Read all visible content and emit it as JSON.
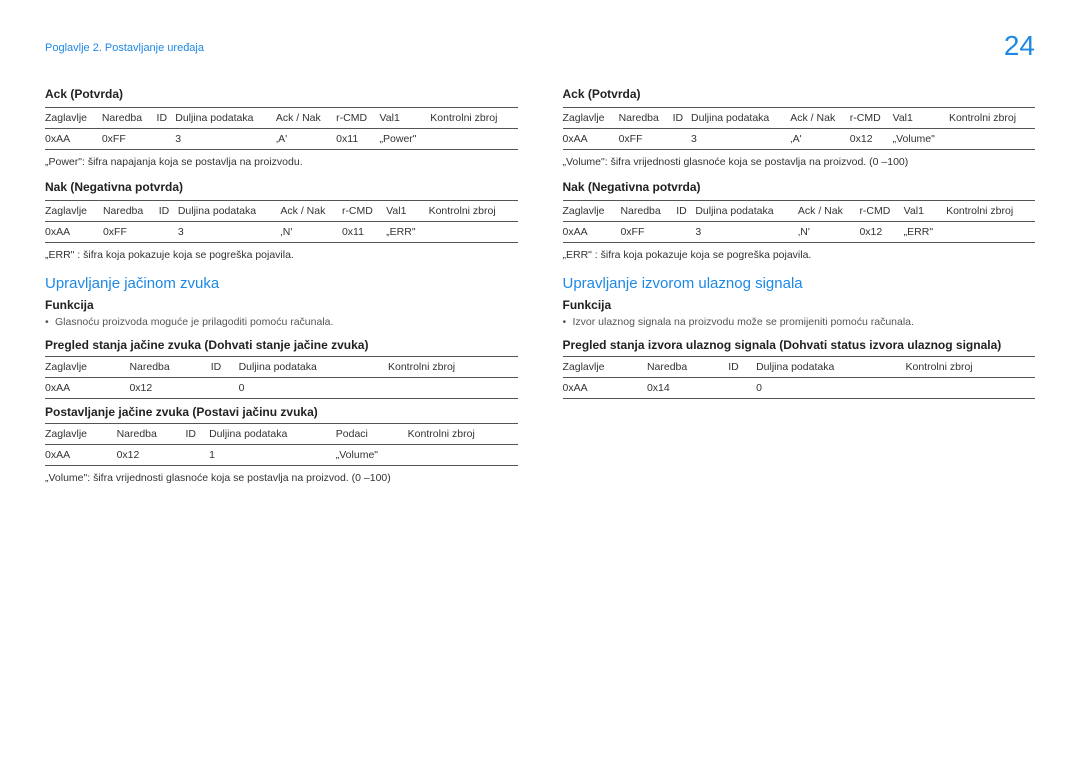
{
  "header": {
    "breadcrumb": "Poglavlje 2. Postavljanje uređaja",
    "pageNumber": "24"
  },
  "left": {
    "ack": {
      "title": "Ack (Potvrda)",
      "headers": [
        "Zaglavlje",
        "Naredba",
        "ID",
        "Duljina podataka",
        "Ack / Nak",
        "r-CMD",
        "Val1",
        "Kontrolni zbroj"
      ],
      "row": [
        "0xAA",
        "0xFF",
        "",
        "3",
        "‚A'",
        "0x11",
        "„Power\"",
        ""
      ],
      "note": "„Power\": šifra napajanja koja se postavlja na proizvodu."
    },
    "nak": {
      "title": "Nak (Negativna potvrda)",
      "headers": [
        "Zaglavlje",
        "Naredba",
        "ID",
        "Duljina podataka",
        "Ack / Nak",
        "r-CMD",
        "Val1",
        "Kontrolni zbroj"
      ],
      "row": [
        "0xAA",
        "0xFF",
        "",
        "3",
        "‚N'",
        "0x11",
        "„ERR\"",
        ""
      ],
      "note": "„ERR\" : šifra koja pokazuje koja se pogreška pojavila."
    },
    "volume": {
      "title": "Upravljanje jačinom zvuka",
      "funcTitle": "Funkcija",
      "funcBullet": "Glasnoću proizvoda moguće je prilagoditi pomoću računala.",
      "get": {
        "title": "Pregled stanja jačine zvuka (Dohvati stanje jačine zvuka)",
        "headers": [
          "Zaglavlje",
          "Naredba",
          "ID",
          "Duljina podataka",
          "Kontrolni zbroj"
        ],
        "row": [
          "0xAA",
          "0x12",
          "",
          "0",
          ""
        ]
      },
      "set": {
        "title": "Postavljanje jačine zvuka (Postavi jačinu zvuka)",
        "headers": [
          "Zaglavlje",
          "Naredba",
          "ID",
          "Duljina podataka",
          "Podaci",
          "Kontrolni zbroj"
        ],
        "row": [
          "0xAA",
          "0x12",
          "",
          "1",
          "„Volume\"",
          ""
        ],
        "note": "„Volume\": šifra vrijednosti glasnoće koja se postavlja na proizvod. (0 –100)"
      }
    }
  },
  "right": {
    "ack": {
      "title": "Ack (Potvrda)",
      "headers": [
        "Zaglavlje",
        "Naredba",
        "ID",
        "Duljina podataka",
        "Ack / Nak",
        "r-CMD",
        "Val1",
        "Kontrolni zbroj"
      ],
      "row": [
        "0xAA",
        "0xFF",
        "",
        "3",
        "‚A'",
        "0x12",
        "„Volume\"",
        ""
      ],
      "note": "„Volume\": šifra vrijednosti glasnoće koja se postavlja na proizvod. (0 –100)"
    },
    "nak": {
      "title": "Nak (Negativna potvrda)",
      "headers": [
        "Zaglavlje",
        "Naredba",
        "ID",
        "Duljina podataka",
        "Ack / Nak",
        "r-CMD",
        "Val1",
        "Kontrolni zbroj"
      ],
      "row": [
        "0xAA",
        "0xFF",
        "",
        "3",
        "‚N'",
        "0x12",
        "„ERR\"",
        ""
      ],
      "note": "„ERR\" : šifra koja pokazuje koja se pogreška pojavila."
    },
    "input": {
      "title": "Upravljanje izvorom ulaznog signala",
      "funcTitle": "Funkcija",
      "funcBullet": "Izvor ulaznog signala na proizvodu može se promijeniti pomoću računala.",
      "get": {
        "title": "Pregled stanja izvora ulaznog signala (Dohvati status izvora ulaznog signala)",
        "headers": [
          "Zaglavlje",
          "Naredba",
          "ID",
          "Duljina podataka",
          "Kontrolni zbroj"
        ],
        "row": [
          "0xAA",
          "0x14",
          "",
          "0",
          ""
        ]
      }
    }
  }
}
